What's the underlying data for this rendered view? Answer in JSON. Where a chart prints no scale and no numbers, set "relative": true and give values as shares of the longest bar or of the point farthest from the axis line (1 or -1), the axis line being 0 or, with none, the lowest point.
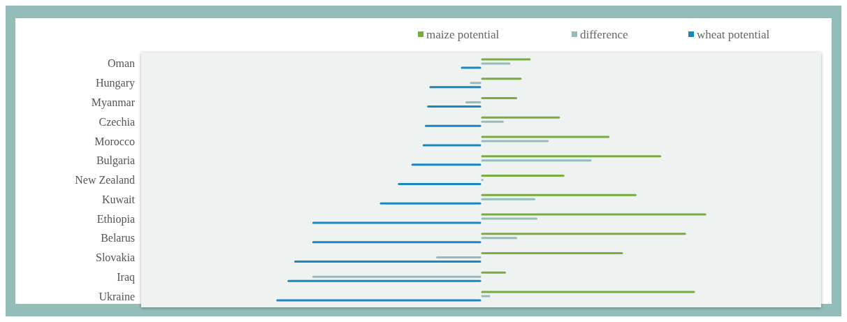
{
  "chart_data": {
    "type": "bar",
    "orientation": "horizontal",
    "relative": true,
    "legend": "top",
    "categories": [
      "Oman",
      "Hungary",
      "Myanmar",
      "Czechia",
      "Morocco",
      "Bulgaria",
      "New Zealand",
      "Kuwait",
      "Ethiopia",
      "Belarus",
      "Slovakia",
      "Iraq",
      "Ukraine"
    ],
    "series": [
      {
        "name": "maize potential",
        "color": "#7aad3f",
        "values": [
          0.22,
          0.18,
          0.16,
          0.35,
          0.57,
          0.8,
          0.37,
          0.69,
          1,
          0.91,
          0.63,
          0.11,
          0.95
        ]
      },
      {
        "name": "difference",
        "color": "#93bdbb",
        "values": [
          0.13,
          -0.05,
          -0.07,
          0.1,
          0.3,
          0.49,
          0.01,
          0.24,
          0.25,
          0.16,
          -0.2,
          -0.75,
          0.04
        ]
      },
      {
        "name": "wheat potential",
        "color": "#1a87bf",
        "values": [
          -0.09,
          -0.23,
          -0.24,
          -0.25,
          -0.26,
          -0.31,
          -0.37,
          -0.45,
          -0.75,
          -0.75,
          -0.83,
          -0.86,
          -0.91
        ]
      }
    ]
  }
}
